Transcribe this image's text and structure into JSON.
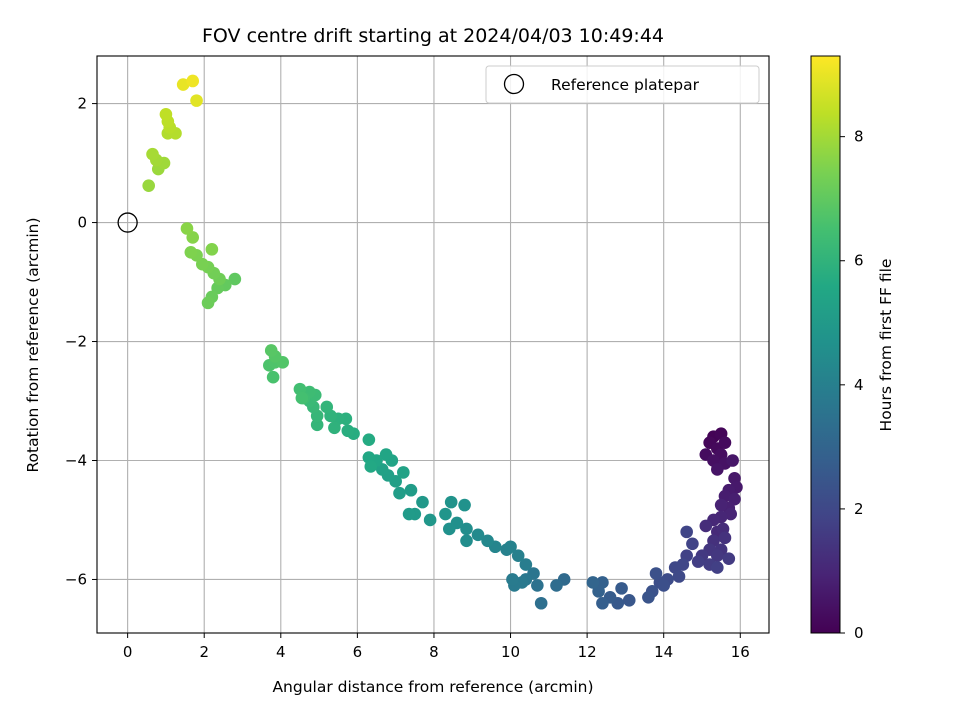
{
  "chart_data": {
    "type": "scatter",
    "title": "FOV centre drift starting at 2024/04/03 10:49:44",
    "xlabel": "Angular distance from reference (arcmin)",
    "ylabel": "Rotation from reference (arcmin)",
    "xlim": [
      -0.8,
      16.75
    ],
    "ylim": [
      -6.9,
      2.8
    ],
    "x_ticks": [
      0,
      2,
      4,
      6,
      8,
      10,
      12,
      14,
      16
    ],
    "y_ticks": [
      -6,
      -4,
      -2,
      0,
      2
    ],
    "grid": true,
    "legend": {
      "placement": "top-right",
      "entries": [
        "Reference platepar"
      ]
    },
    "reference_point": {
      "name": "Reference platepar",
      "x": 0,
      "y": 0
    },
    "colorbar": {
      "label": "Hours from first FF file",
      "colormap": "viridis",
      "range": [
        0,
        9.3
      ],
      "ticks": [
        0,
        2,
        4,
        6,
        8
      ]
    },
    "points": [
      {
        "x": 15.3,
        "y": -3.6,
        "c": 0.05
      },
      {
        "x": 15.5,
        "y": -3.55,
        "c": 0.1
      },
      {
        "x": 15.2,
        "y": -3.7,
        "c": 0.15
      },
      {
        "x": 15.4,
        "y": -3.8,
        "c": 0.2
      },
      {
        "x": 15.6,
        "y": -3.7,
        "c": 0.25
      },
      {
        "x": 15.1,
        "y": -3.9,
        "c": 0.3
      },
      {
        "x": 15.5,
        "y": -3.9,
        "c": 0.35
      },
      {
        "x": 15.3,
        "y": -4.0,
        "c": 0.4
      },
      {
        "x": 15.6,
        "y": -4.05,
        "c": 0.45
      },
      {
        "x": 15.4,
        "y": -4.15,
        "c": 0.5
      },
      {
        "x": 15.8,
        "y": -4.0,
        "c": 0.55
      },
      {
        "x": 15.85,
        "y": -4.3,
        "c": 0.6
      },
      {
        "x": 15.9,
        "y": -4.45,
        "c": 0.65
      },
      {
        "x": 15.7,
        "y": -4.5,
        "c": 0.7
      },
      {
        "x": 15.6,
        "y": -4.6,
        "c": 0.75
      },
      {
        "x": 15.85,
        "y": -4.65,
        "c": 0.8
      },
      {
        "x": 15.7,
        "y": -4.8,
        "c": 0.85
      },
      {
        "x": 15.5,
        "y": -4.75,
        "c": 0.9
      },
      {
        "x": 15.75,
        "y": -4.9,
        "c": 0.95
      },
      {
        "x": 15.5,
        "y": -4.95,
        "c": 1.0
      },
      {
        "x": 15.3,
        "y": -5.0,
        "c": 1.05
      },
      {
        "x": 15.4,
        "y": -5.2,
        "c": 1.1
      },
      {
        "x": 15.55,
        "y": -5.15,
        "c": 1.15
      },
      {
        "x": 15.1,
        "y": -5.1,
        "c": 1.2
      },
      {
        "x": 15.3,
        "y": -5.35,
        "c": 1.3
      },
      {
        "x": 15.6,
        "y": -5.3,
        "c": 1.35
      },
      {
        "x": 15.5,
        "y": -5.5,
        "c": 1.4
      },
      {
        "x": 15.2,
        "y": -5.5,
        "c": 1.45
      },
      {
        "x": 15.4,
        "y": -5.6,
        "c": 1.5
      },
      {
        "x": 15.0,
        "y": -5.6,
        "c": 1.55
      },
      {
        "x": 15.7,
        "y": -5.65,
        "c": 1.6
      },
      {
        "x": 15.2,
        "y": -5.75,
        "c": 1.65
      },
      {
        "x": 14.9,
        "y": -5.7,
        "c": 1.7
      },
      {
        "x": 15.4,
        "y": -5.8,
        "c": 1.75
      },
      {
        "x": 14.6,
        "y": -5.6,
        "c": 1.8
      },
      {
        "x": 14.75,
        "y": -5.4,
        "c": 1.85
      },
      {
        "x": 14.6,
        "y": -5.2,
        "c": 1.9
      },
      {
        "x": 14.5,
        "y": -5.75,
        "c": 1.95
      },
      {
        "x": 14.3,
        "y": -5.8,
        "c": 2.0
      },
      {
        "x": 14.4,
        "y": -5.95,
        "c": 2.05
      },
      {
        "x": 14.1,
        "y": -6.0,
        "c": 2.15
      },
      {
        "x": 13.9,
        "y": -6.05,
        "c": 2.2
      },
      {
        "x": 14.0,
        "y": -6.1,
        "c": 2.25
      },
      {
        "x": 13.8,
        "y": -5.9,
        "c": 2.3
      },
      {
        "x": 13.7,
        "y": -6.2,
        "c": 2.35
      },
      {
        "x": 13.6,
        "y": -6.3,
        "c": 2.4
      },
      {
        "x": 13.1,
        "y": -6.35,
        "c": 2.5
      },
      {
        "x": 12.8,
        "y": -6.4,
        "c": 2.6
      },
      {
        "x": 12.9,
        "y": -6.15,
        "c": 2.65
      },
      {
        "x": 12.6,
        "y": -6.3,
        "c": 2.7
      },
      {
        "x": 12.4,
        "y": -6.4,
        "c": 2.8
      },
      {
        "x": 12.4,
        "y": -6.05,
        "c": 2.85
      },
      {
        "x": 12.3,
        "y": -6.2,
        "c": 2.9
      },
      {
        "x": 12.15,
        "y": -6.05,
        "c": 3.0
      },
      {
        "x": 11.4,
        "y": -6.0,
        "c": 3.2
      },
      {
        "x": 11.2,
        "y": -6.1,
        "c": 3.3
      },
      {
        "x": 10.8,
        "y": -6.4,
        "c": 3.4
      },
      {
        "x": 10.7,
        "y": -6.1,
        "c": 3.5
      },
      {
        "x": 10.6,
        "y": -5.9,
        "c": 3.6
      },
      {
        "x": 10.4,
        "y": -6.0,
        "c": 3.7
      },
      {
        "x": 10.3,
        "y": -6.05,
        "c": 3.75
      },
      {
        "x": 10.1,
        "y": -6.1,
        "c": 3.8
      },
      {
        "x": 10.05,
        "y": -6.0,
        "c": 3.85
      },
      {
        "x": 10.4,
        "y": -5.75,
        "c": 3.9
      },
      {
        "x": 10.2,
        "y": -5.6,
        "c": 4.0
      },
      {
        "x": 9.9,
        "y": -5.5,
        "c": 4.05
      },
      {
        "x": 10.0,
        "y": -5.45,
        "c": 4.1
      },
      {
        "x": 9.6,
        "y": -5.45,
        "c": 4.2
      },
      {
        "x": 9.4,
        "y": -5.35,
        "c": 4.3
      },
      {
        "x": 9.15,
        "y": -5.25,
        "c": 4.4
      },
      {
        "x": 8.85,
        "y": -5.35,
        "c": 4.5
      },
      {
        "x": 8.85,
        "y": -5.15,
        "c": 4.55
      },
      {
        "x": 8.6,
        "y": -5.05,
        "c": 4.6
      },
      {
        "x": 8.4,
        "y": -5.15,
        "c": 4.65
      },
      {
        "x": 8.8,
        "y": -4.75,
        "c": 4.7
      },
      {
        "x": 8.45,
        "y": -4.7,
        "c": 4.75
      },
      {
        "x": 8.3,
        "y": -4.9,
        "c": 4.8
      },
      {
        "x": 7.9,
        "y": -5.0,
        "c": 4.9
      },
      {
        "x": 7.7,
        "y": -4.7,
        "c": 4.95
      },
      {
        "x": 7.5,
        "y": -4.9,
        "c": 5.0
      },
      {
        "x": 7.35,
        "y": -4.9,
        "c": 5.05
      },
      {
        "x": 7.4,
        "y": -4.5,
        "c": 5.1
      },
      {
        "x": 7.1,
        "y": -4.55,
        "c": 5.15
      },
      {
        "x": 7.0,
        "y": -4.35,
        "c": 5.2
      },
      {
        "x": 6.8,
        "y": -4.25,
        "c": 5.25
      },
      {
        "x": 6.65,
        "y": -4.15,
        "c": 5.3
      },
      {
        "x": 7.2,
        "y": -4.2,
        "c": 5.35
      },
      {
        "x": 6.9,
        "y": -4.0,
        "c": 5.4
      },
      {
        "x": 6.75,
        "y": -3.9,
        "c": 5.45
      },
      {
        "x": 6.5,
        "y": -4.0,
        "c": 5.5
      },
      {
        "x": 6.3,
        "y": -3.95,
        "c": 5.55
      },
      {
        "x": 6.35,
        "y": -4.1,
        "c": 5.6
      },
      {
        "x": 6.3,
        "y": -3.65,
        "c": 5.65
      },
      {
        "x": 5.9,
        "y": -3.55,
        "c": 5.75
      },
      {
        "x": 5.75,
        "y": -3.5,
        "c": 5.8
      },
      {
        "x": 5.7,
        "y": -3.3,
        "c": 5.85
      },
      {
        "x": 5.5,
        "y": -3.3,
        "c": 5.9
      },
      {
        "x": 5.4,
        "y": -3.45,
        "c": 5.95
      },
      {
        "x": 5.3,
        "y": -3.25,
        "c": 6.0
      },
      {
        "x": 5.2,
        "y": -3.1,
        "c": 6.05
      },
      {
        "x": 4.95,
        "y": -3.4,
        "c": 6.1
      },
      {
        "x": 4.95,
        "y": -3.25,
        "c": 6.15
      },
      {
        "x": 4.85,
        "y": -3.1,
        "c": 6.2
      },
      {
        "x": 4.75,
        "y": -3.0,
        "c": 6.25
      },
      {
        "x": 4.9,
        "y": -2.9,
        "c": 6.3
      },
      {
        "x": 4.75,
        "y": -2.85,
        "c": 6.35
      },
      {
        "x": 4.6,
        "y": -2.95,
        "c": 6.4
      },
      {
        "x": 4.5,
        "y": -2.8,
        "c": 6.45
      },
      {
        "x": 4.55,
        "y": -2.95,
        "c": 6.5
      },
      {
        "x": 3.8,
        "y": -2.6,
        "c": 6.6
      },
      {
        "x": 3.7,
        "y": -2.4,
        "c": 6.65
      },
      {
        "x": 3.85,
        "y": -2.35,
        "c": 6.7
      },
      {
        "x": 4.05,
        "y": -2.35,
        "c": 6.75
      },
      {
        "x": 3.85,
        "y": -2.25,
        "c": 6.8
      },
      {
        "x": 3.75,
        "y": -2.15,
        "c": 6.85
      },
      {
        "x": 2.8,
        "y": -0.95,
        "c": 7.0
      },
      {
        "x": 2.55,
        "y": -1.05,
        "c": 7.05
      },
      {
        "x": 2.35,
        "y": -1.1,
        "c": 7.1
      },
      {
        "x": 2.2,
        "y": -1.25,
        "c": 7.15
      },
      {
        "x": 2.1,
        "y": -1.35,
        "c": 7.2
      },
      {
        "x": 2.4,
        "y": -0.95,
        "c": 7.25
      },
      {
        "x": 2.25,
        "y": -0.85,
        "c": 7.3
      },
      {
        "x": 2.1,
        "y": -0.75,
        "c": 7.35
      },
      {
        "x": 1.95,
        "y": -0.7,
        "c": 7.4
      },
      {
        "x": 1.8,
        "y": -0.55,
        "c": 7.45
      },
      {
        "x": 1.65,
        "y": -0.5,
        "c": 7.5
      },
      {
        "x": 2.2,
        "y": -0.45,
        "c": 7.55
      },
      {
        "x": 1.7,
        "y": -0.25,
        "c": 7.6
      },
      {
        "x": 1.55,
        "y": -0.1,
        "c": 7.65
      },
      {
        "x": 0.55,
        "y": 0.62,
        "c": 7.85
      },
      {
        "x": 0.8,
        "y": 0.9,
        "c": 7.9
      },
      {
        "x": 0.95,
        "y": 1.0,
        "c": 7.95
      },
      {
        "x": 0.75,
        "y": 1.05,
        "c": 8.0
      },
      {
        "x": 0.65,
        "y": 1.15,
        "c": 8.05
      },
      {
        "x": 1.05,
        "y": 1.5,
        "c": 8.2
      },
      {
        "x": 1.25,
        "y": 1.5,
        "c": 8.25
      },
      {
        "x": 1.1,
        "y": 1.6,
        "c": 8.3
      },
      {
        "x": 1.05,
        "y": 1.7,
        "c": 8.35
      },
      {
        "x": 1.0,
        "y": 1.82,
        "c": 8.4
      },
      {
        "x": 1.8,
        "y": 2.05,
        "c": 8.9
      },
      {
        "x": 1.45,
        "y": 2.32,
        "c": 9.0
      },
      {
        "x": 1.7,
        "y": 2.38,
        "c": 9.1
      }
    ]
  }
}
